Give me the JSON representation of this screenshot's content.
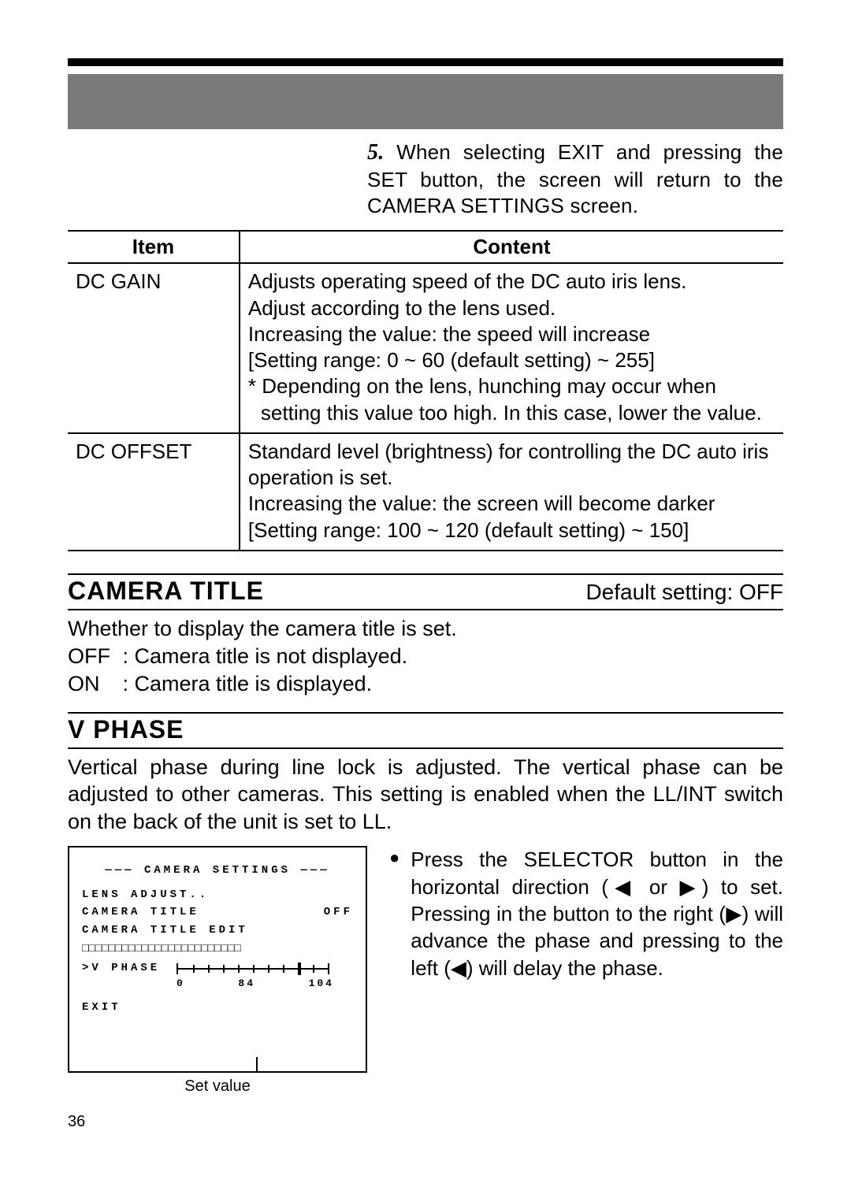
{
  "step": {
    "number": "5.",
    "text": "When selecting EXIT and pressing the SET button, the screen will return to the CAMERA SETTINGS screen."
  },
  "table": {
    "headers": {
      "item": "Item",
      "content": "Content"
    },
    "rows": [
      {
        "item": "DC GAIN",
        "lines": [
          "Adjusts operating speed of the DC auto iris lens.",
          "Adjust according to the lens used.",
          "Increasing the value: the speed will increase",
          "[Setting range: 0 ~ 60 (default setting) ~ 255]"
        ],
        "dep": "* Depending on the lens, hunching may occur when setting this value too high. In this case, lower the value."
      },
      {
        "item": "DC OFFSET",
        "lines": [
          "Standard level (brightness) for controlling the DC auto iris operation is set.",
          "Increasing the value: the screen will become darker",
          "[Setting range: 100 ~ 120 (default setting) ~ 150]"
        ],
        "dep": null
      }
    ]
  },
  "camera_title": {
    "heading": "CAMERA TITLE",
    "default": "Default setting: OFF",
    "lead": "Whether to display the camera title is set.",
    "opts": [
      {
        "label": "OFF",
        "text": "Camera title is not displayed."
      },
      {
        "label": "ON",
        "text": "Camera title is displayed."
      }
    ]
  },
  "vphase": {
    "heading": "V PHASE",
    "lead": "Vertical phase during line lock is adjusted. The vertical phase can be adjusted to other cameras. This setting is enabled when the LL/INT switch on the back of the unit is set to LL.",
    "bullet": "Press the SELECTOR button in the horizontal direction (◀ or ▶) to set. Pressing in the button to the right (▶) will advance the phase and pressing to the left (◀) will delay the phase."
  },
  "osd": {
    "title": "——— CAMERA SETTINGS ———",
    "lines": {
      "lens": "LENS ADJUST..",
      "camtitle_label": "CAMERA TITLE",
      "camtitle_value": "OFF",
      "camtitle_edit": "CAMERA TITLE EDIT",
      "boxes": "□□□□□□□□□□□□□□□□□□□□□□□□",
      "vphase": ">V PHASE",
      "exit": "EXIT"
    },
    "slider": {
      "min": "0",
      "value": "84",
      "max": "104",
      "pos_percent": 80
    },
    "caption": "Set value"
  },
  "page_number": "36",
  "colors": {
    "banner": "#7a7a7a",
    "rule": "#000000",
    "text": "#000000",
    "bg": "#ffffff"
  }
}
